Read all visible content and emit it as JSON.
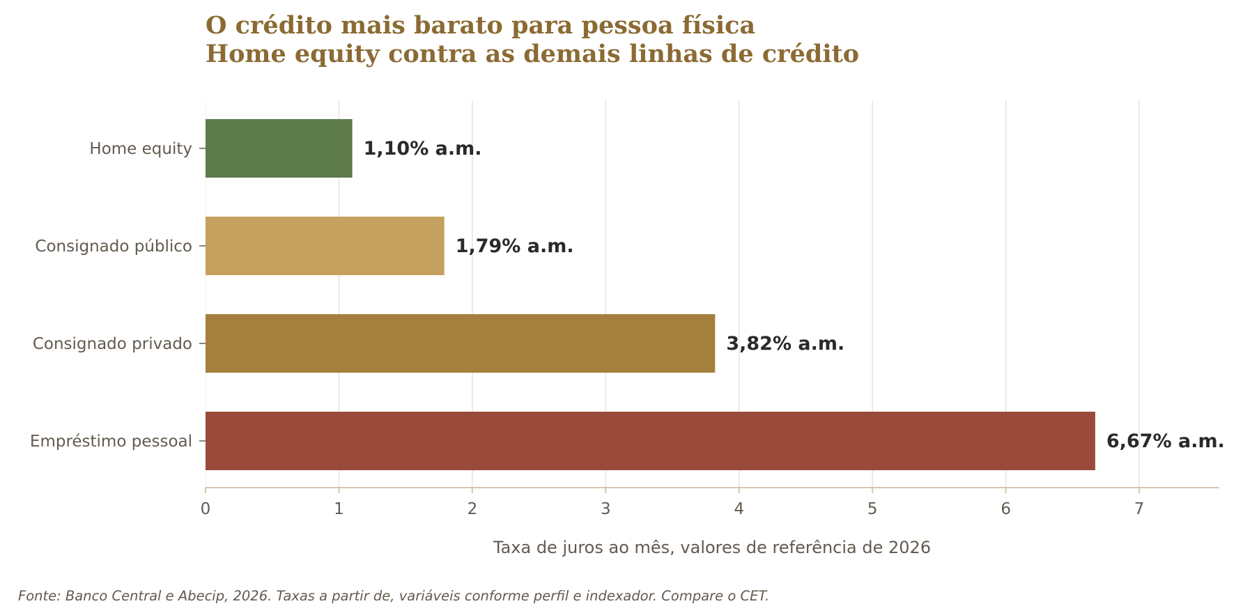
{
  "chart_data": {
    "type": "bar",
    "orientation": "horizontal",
    "title_lines": [
      "O crédito mais barato para pessoa física",
      "Home equity contra as demais linhas de crédito"
    ],
    "categories": [
      "Home equity",
      "Consignado público",
      "Consignado privado",
      "Empréstimo pessoal"
    ],
    "values": [
      1.1,
      1.79,
      3.82,
      6.67
    ],
    "value_labels": [
      "1,10% a.m.",
      "1,79% a.m.",
      "3,82% a.m.",
      "6,67% a.m."
    ],
    "bar_colors": [
      "#5e7b4b",
      "#c4a15f",
      "#a57f3d",
      "#9a4a3a"
    ],
    "xlabel": "Taxa de juros ao mês, valores de referência de 2026",
    "xlim": [
      0,
      7.6
    ],
    "xticks": [
      0,
      1,
      2,
      3,
      4,
      5,
      6,
      7
    ],
    "xtick_labels": [
      "0",
      "1",
      "2",
      "3",
      "4",
      "5",
      "6",
      "7"
    ],
    "grid": "vertical",
    "source": "Fonte: Banco Central e Abecip, 2026. Taxas a partir de, variáveis conforme perfil e indexador. Compare o CET.",
    "colors": {
      "title": "#8b6a33",
      "text": "#635a50",
      "value_text": "#2a2a2a",
      "grid": "#ece4d6",
      "axis": "#d6c7ad"
    }
  }
}
